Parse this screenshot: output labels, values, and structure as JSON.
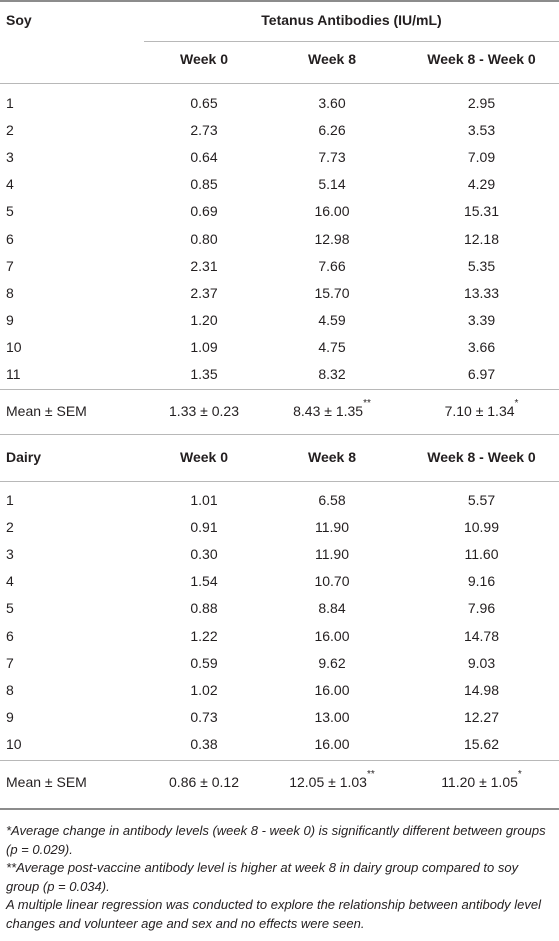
{
  "header": {
    "group1_label": "Soy",
    "span_title": "Tetanus Antibodies (IU/mL)",
    "columns": [
      "Week 0",
      "Week 8",
      "Week 8 - Week 0"
    ]
  },
  "soy": {
    "rows": [
      [
        "1",
        "0.65",
        "3.60",
        "2.95"
      ],
      [
        "2",
        "2.73",
        "6.26",
        "3.53"
      ],
      [
        "3",
        "0.64",
        "7.73",
        "7.09"
      ],
      [
        "4",
        "0.85",
        "5.14",
        "4.29"
      ],
      [
        "5",
        "0.69",
        "16.00",
        "15.31"
      ],
      [
        "6",
        "0.80",
        "12.98",
        "12.18"
      ],
      [
        "7",
        "2.31",
        "7.66",
        "5.35"
      ],
      [
        "8",
        "2.37",
        "15.70",
        "13.33"
      ],
      [
        "9",
        "1.20",
        "4.59",
        "3.39"
      ],
      [
        "10",
        "1.09",
        "4.75",
        "3.66"
      ],
      [
        "11",
        "1.35",
        "8.32",
        "6.97"
      ]
    ],
    "mean": {
      "label": "Mean ± SEM",
      "week0": "1.33 ± 0.23",
      "week8": "8.43 ± 1.35",
      "week8_mark": "**",
      "diff": "7.10 ± 1.34",
      "diff_mark": "*"
    }
  },
  "dairy": {
    "label": "Dairy",
    "columns": [
      "Week 0",
      "Week 8",
      "Week 8 - Week 0"
    ],
    "rows": [
      [
        "1",
        "1.01",
        "6.58",
        "5.57"
      ],
      [
        "2",
        "0.91",
        "11.90",
        "10.99"
      ],
      [
        "3",
        "0.30",
        "11.90",
        "11.60"
      ],
      [
        "4",
        "1.54",
        "10.70",
        "9.16"
      ],
      [
        "5",
        "0.88",
        "8.84",
        "7.96"
      ],
      [
        "6",
        "1.22",
        "16.00",
        "14.78"
      ],
      [
        "7",
        "0.59",
        "9.62",
        "9.03"
      ],
      [
        "8",
        "1.02",
        "16.00",
        "14.98"
      ],
      [
        "9",
        "0.73",
        "13.00",
        "12.27"
      ],
      [
        "10",
        "0.38",
        "16.00",
        "15.62"
      ]
    ],
    "mean": {
      "label": "Mean ± SEM",
      "week0": "0.86 ± 0.12",
      "week8": "12.05 ± 1.03",
      "week8_mark": "**",
      "diff": "11.20 ± 1.05",
      "diff_mark": "*"
    }
  },
  "footnotes": [
    "*Average change in antibody levels (week 8 - week 0) is significantly different between groups (p = 0.029).",
    "**Average post-vaccine antibody level is higher at week 8 in dairy group compared to soy group (p = 0.034).",
    "A multiple linear regression was conducted to explore the relationship between antibody level changes and volunteer age and sex and no effects were seen."
  ]
}
